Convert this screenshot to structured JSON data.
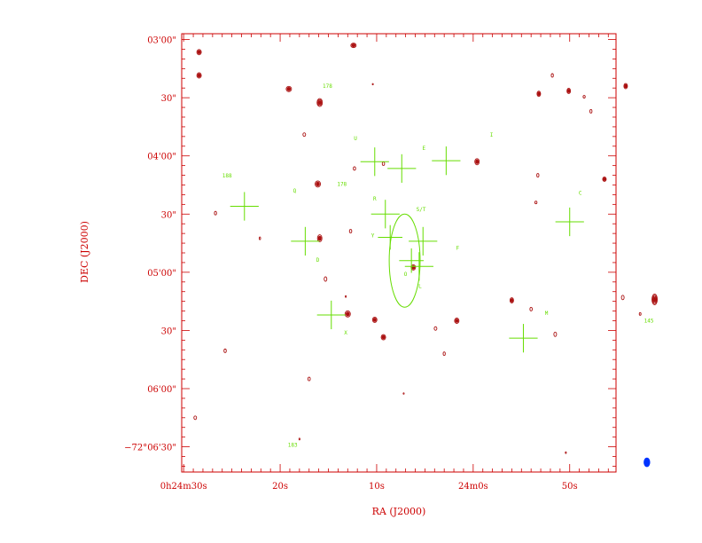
{
  "chart_data": {
    "type": "scatter",
    "xlabel": "RA (J2000)",
    "ylabel": "DEC (J2000)",
    "colors": {
      "axis": "#cc0000",
      "contour": "#aa1111",
      "marker": "#66dd00",
      "beam": "#0033ff"
    },
    "x_ticks": [
      {
        "label": "0h24m30s",
        "ra_s": 30
      },
      {
        "label": "20s",
        "ra_s": 20
      },
      {
        "label": "10s",
        "ra_s": 10
      },
      {
        "label": "24m0s",
        "ra_s": 0
      },
      {
        "label": "50s",
        "ra_s": -10
      }
    ],
    "y_ticks": [
      {
        "label": "03'00\"",
        "dec_s": 0
      },
      {
        "label": "30\"",
        "dec_s": 30
      },
      {
        "label": "04'00\"",
        "dec_s": 60
      },
      {
        "label": "30\"",
        "dec_s": 90
      },
      {
        "label": "05'00\"",
        "dec_s": 120
      },
      {
        "label": "30\"",
        "dec_s": 150
      },
      {
        "label": "06'00\"",
        "dec_s": 180
      },
      {
        "label": "−72°06'30\"",
        "dec_s": 210
      }
    ],
    "ra_range": [
      30.2,
      -14.8
    ],
    "dec_range": [
      -3,
      223
    ],
    "circle": {
      "ra": 7.1,
      "dec": 114,
      "radius_arcsec": 24
    },
    "crosses": [
      {
        "ra": 10.2,
        "dec": 63,
        "size": 7
      },
      {
        "ra": 7.4,
        "dec": 66.5,
        "size": 7
      },
      {
        "ra": 2.8,
        "dec": 62.5,
        "size": 7
      },
      {
        "ra": 23.7,
        "dec": 86,
        "size": 7
      },
      {
        "ra": 9.1,
        "dec": 90,
        "size": 7
      },
      {
        "ra": 8.6,
        "dec": 102,
        "size": 6
      },
      {
        "ra": 5.2,
        "dec": 104,
        "size": 7
      },
      {
        "ra": 6.4,
        "dec": 114,
        "size": 6
      },
      {
        "ra": 5.6,
        "dec": 117,
        "size": 7
      },
      {
        "ra": -10.0,
        "dec": 94,
        "size": 7
      },
      {
        "ra": 17.4,
        "dec": 104,
        "size": 7
      },
      {
        "ra": 14.7,
        "dec": 142,
        "size": 7
      },
      {
        "ra": -5.2,
        "dec": 154,
        "size": 7
      }
    ],
    "contours": [
      {
        "ra": 28.4,
        "dec": 6.5,
        "w": 2.5,
        "h": 3,
        "n": 2
      },
      {
        "ra": 28.4,
        "dec": 18.5,
        "w": 2.5,
        "h": 3,
        "n": 2
      },
      {
        "ra": 12.4,
        "dec": 3,
        "w": 3,
        "h": 2.5,
        "n": 2
      },
      {
        "ra": 19.1,
        "dec": 25.5,
        "w": 3,
        "h": 3,
        "n": 2
      },
      {
        "ra": 15.9,
        "dec": 32.5,
        "w": 3,
        "h": 4.5,
        "n": 3
      },
      {
        "ra": 17.5,
        "dec": 49,
        "w": 1.5,
        "h": 2,
        "n": 1
      },
      {
        "ra": 15.9,
        "dec": 102.5,
        "w": 2.5,
        "h": 4,
        "n": 2
      },
      {
        "ra": 9.3,
        "dec": 64,
        "w": 1.3,
        "h": 2,
        "n": 1
      },
      {
        "ra": 12.3,
        "dec": 66.5,
        "w": 1.3,
        "h": 2,
        "n": 1
      },
      {
        "ra": 12.7,
        "dec": 98.8,
        "w": 1.3,
        "h": 2,
        "n": 1
      },
      {
        "ra": 16.1,
        "dec": 74.5,
        "w": 3,
        "h": 3.5,
        "n": 2
      },
      {
        "ra": 6.2,
        "dec": 117.5,
        "w": 2.5,
        "h": 3,
        "n": 2
      },
      {
        "ra": 15.3,
        "dec": 123.5,
        "w": 1.5,
        "h": 2.5,
        "n": 1
      },
      {
        "ra": 13.0,
        "dec": 141.5,
        "w": 3,
        "h": 3.5,
        "n": 2
      },
      {
        "ra": 10.2,
        "dec": 144.5,
        "w": 2.5,
        "h": 3,
        "n": 2
      },
      {
        "ra": 9.3,
        "dec": 153.5,
        "w": 2.5,
        "h": 3,
        "n": 2
      },
      {
        "ra": 3.9,
        "dec": 149,
        "w": 1.5,
        "h": 2,
        "n": 1
      },
      {
        "ra": 1.7,
        "dec": 145,
        "w": 2.5,
        "h": 3,
        "n": 2
      },
      {
        "ra": -0.4,
        "dec": 63,
        "w": 2.5,
        "h": 3.5,
        "n": 2
      },
      {
        "ra": -4.0,
        "dec": 134.5,
        "w": 2,
        "h": 3,
        "n": 2
      },
      {
        "ra": -6.0,
        "dec": 139,
        "w": 1.3,
        "h": 2,
        "n": 1
      },
      {
        "ra": -8.5,
        "dec": 152,
        "w": 1.5,
        "h": 2.5,
        "n": 1
      },
      {
        "ra": -6.8,
        "dec": 28,
        "w": 2,
        "h": 3,
        "n": 2
      },
      {
        "ra": -9.9,
        "dec": 26.5,
        "w": 2,
        "h": 3,
        "n": 2
      },
      {
        "ra": -8.2,
        "dec": 18.5,
        "w": 1.2,
        "h": 2,
        "n": 1
      },
      {
        "ra": -11.5,
        "dec": 29.5,
        "w": 1.2,
        "h": 1.5,
        "n": 1
      },
      {
        "ra": -12.2,
        "dec": 37,
        "w": 1.2,
        "h": 2,
        "n": 1
      },
      {
        "ra": -15.8,
        "dec": 24,
        "w": 2,
        "h": 3,
        "n": 2
      },
      {
        "ra": -13.6,
        "dec": 72,
        "w": 2,
        "h": 2.5,
        "n": 2
      },
      {
        "ra": -6.7,
        "dec": 70,
        "w": 1.2,
        "h": 2,
        "n": 1
      },
      {
        "ra": -6.5,
        "dec": 84,
        "w": 1.2,
        "h": 1.5,
        "n": 1
      },
      {
        "ra": -15.5,
        "dec": 133,
        "w": 1.5,
        "h": 2.5,
        "n": 1
      },
      {
        "ra": -18.8,
        "dec": 134,
        "w": 3,
        "h": 6,
        "n": 4
      },
      {
        "ra": -17.3,
        "dec": 141.5,
        "w": 1,
        "h": 1.5,
        "n": 1
      },
      {
        "ra": 26.7,
        "dec": 89.5,
        "w": 1.2,
        "h": 2,
        "n": 1
      },
      {
        "ra": 25.7,
        "dec": 160.5,
        "w": 1.3,
        "h": 2,
        "n": 1
      },
      {
        "ra": 22.1,
        "dec": 102.5,
        "w": 0.8,
        "h": 1.5,
        "n": 1
      },
      {
        "ra": 7.2,
        "dec": 182.5,
        "w": 0.5,
        "h": 0.8,
        "n": 1
      },
      {
        "ra": 3.0,
        "dec": 162,
        "w": 1.2,
        "h": 2,
        "n": 1
      },
      {
        "ra": 17.0,
        "dec": 175,
        "w": 1.3,
        "h": 2,
        "n": 1
      },
      {
        "ra": 28.8,
        "dec": 195,
        "w": 1.5,
        "h": 2,
        "n": 1
      },
      {
        "ra": 18.0,
        "dec": 206,
        "w": 0.6,
        "h": 1,
        "n": 1
      },
      {
        "ra": -9.6,
        "dec": 213,
        "w": 0.5,
        "h": 1,
        "n": 1
      },
      {
        "ra": 10.4,
        "dec": 23,
        "w": 0.5,
        "h": 0.8,
        "n": 1
      },
      {
        "ra": 13.2,
        "dec": 132.5,
        "w": 0.6,
        "h": 1,
        "n": 1
      }
    ],
    "labels": [
      {
        "text": "178",
        "ra": 15.1,
        "dec": 25
      },
      {
        "text": "U",
        "ra": 12.2,
        "dec": 52
      },
      {
        "text": "E",
        "ra": 5.1,
        "dec": 57
      },
      {
        "text": "I",
        "ra": -1.9,
        "dec": 50
      },
      {
        "text": "188",
        "ra": 25.5,
        "dec": 71
      },
      {
        "text": "178",
        "ra": 13.6,
        "dec": 75.5
      },
      {
        "text": "Q",
        "ra": 18.5,
        "dec": 79
      },
      {
        "text": "R",
        "ra": 10.2,
        "dec": 83
      },
      {
        "text": "C",
        "ra": -11.1,
        "dec": 80
      },
      {
        "text": "S/T",
        "ra": 5.4,
        "dec": 88.5
      },
      {
        "text": "Y",
        "ra": 10.4,
        "dec": 102
      },
      {
        "text": "F",
        "ra": 1.6,
        "dec": 108.5
      },
      {
        "text": "D",
        "ra": 16.1,
        "dec": 114.5
      },
      {
        "text": "O",
        "ra": 7.0,
        "dec": 122
      },
      {
        "text": "L",
        "ra": 5.5,
        "dec": 128
      },
      {
        "text": "M",
        "ra": -7.6,
        "dec": 142
      },
      {
        "text": "145",
        "ra": -18.2,
        "dec": 146
      },
      {
        "text": "X",
        "ra": 13.2,
        "dec": 152
      },
      {
        "text": "183",
        "ra": 18.7,
        "dec": 210
      }
    ],
    "beam": {
      "ra": -18.0,
      "dec": 218
    }
  }
}
